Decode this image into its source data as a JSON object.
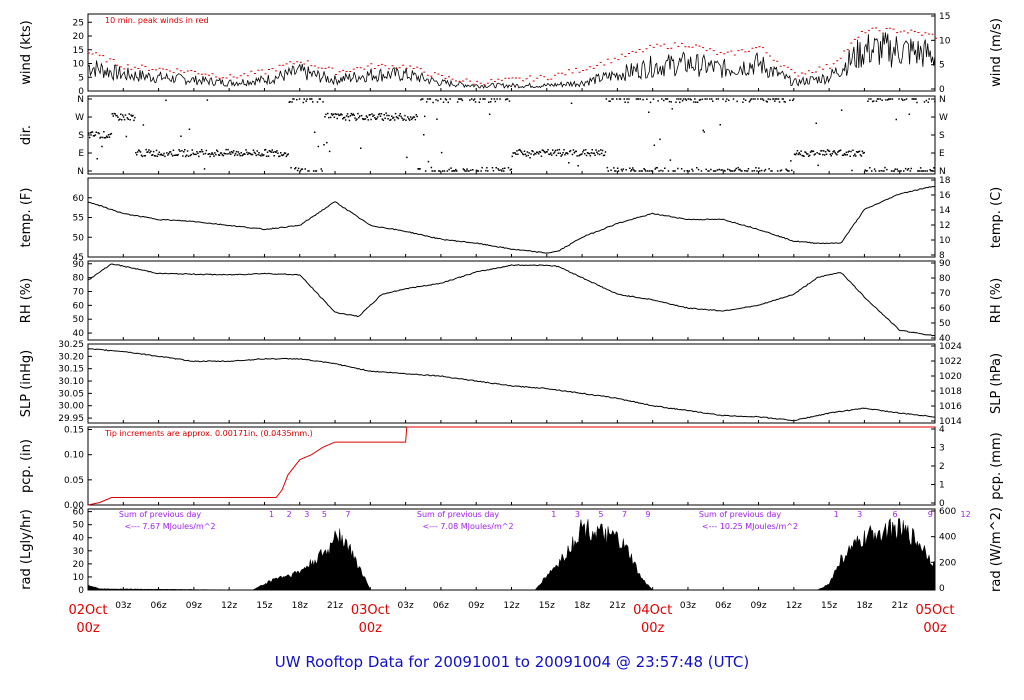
{
  "title": "UW Rooftop Data for 20091001  to  20091004 @ 23:57:48  (UTC)",
  "colors": {
    "peak": "#e00000",
    "trace": "#000000",
    "pcp": "#e00000",
    "note": "#e00000",
    "rad_note": "#a020f0",
    "title": "#1010c8",
    "date": "#e00000"
  },
  "x_axis": {
    "hour_ticks": [
      "03z",
      "06z",
      "09z",
      "12z",
      "15z",
      "18z",
      "21z",
      "03z",
      "06z",
      "09z",
      "12z",
      "15z",
      "18z",
      "21z",
      "03z",
      "06z",
      "09z",
      "12z",
      "15z",
      "18z",
      "21z"
    ],
    "date_labels": [
      {
        "day": "02Oct",
        "hour": "00z"
      },
      {
        "day": "03Oct",
        "hour": "00z"
      },
      {
        "day": "04Oct",
        "hour": "00z"
      },
      {
        "day": "05Oct",
        "hour": "00z"
      }
    ]
  },
  "chart_data": [
    {
      "type": "line",
      "name": "wind",
      "ylabel": "wind (kts)",
      "ylim": [
        0,
        28
      ],
      "yticks": [
        "0",
        "5",
        "10",
        "15",
        "20",
        "25"
      ],
      "y2label": "wind (m/s)",
      "y2ticks": [
        "0",
        "5",
        "10",
        "15"
      ],
      "annotation": "10 min. peak winds in red",
      "x_hours": [
        0,
        3,
        6,
        9,
        12,
        15,
        18,
        21,
        24,
        27,
        30,
        33,
        36,
        39,
        42,
        45,
        48,
        51,
        54,
        57,
        60,
        63,
        66,
        69,
        72
      ],
      "values": [
        9,
        6,
        5,
        4,
        3,
        4,
        7,
        4,
        6,
        6,
        3,
        2,
        2,
        2,
        3,
        6,
        9,
        10,
        8,
        10,
        3,
        5,
        15,
        15,
        13
      ],
      "peak": [
        14,
        9,
        8,
        7,
        5,
        7,
        11,
        7,
        9,
        9,
        5,
        3,
        4,
        5,
        8,
        12,
        16,
        17,
        13,
        16,
        6,
        9,
        22,
        22,
        20
      ]
    },
    {
      "type": "scatter",
      "name": "dir",
      "ylabel": "dir.",
      "yticks": [
        "N",
        "E",
        "S",
        "W",
        "N"
      ],
      "y2ticks": [
        "N",
        "E",
        "S",
        "W",
        "N"
      ],
      "x_hours": [
        0,
        2,
        4,
        8,
        12,
        16,
        17,
        20,
        24,
        28,
        32,
        36,
        40,
        44,
        48,
        52,
        56,
        60,
        64,
        66,
        68,
        70,
        72
      ],
      "values": [
        "S",
        "W",
        "E",
        "E",
        "E",
        "E",
        "N",
        "W",
        "W",
        "N",
        "N",
        "E",
        "E",
        "N",
        "N",
        "N",
        "N",
        "E",
        "E",
        "N",
        "N",
        "N",
        "N"
      ]
    },
    {
      "type": "line",
      "name": "temp",
      "ylabel": "temp. (F)",
      "ylim": [
        45,
        65
      ],
      "yticks": [
        "45",
        "50",
        "55",
        "60"
      ],
      "y2label": "temp. (C)",
      "y2ticks": [
        "8",
        "10",
        "12",
        "14",
        "16",
        "18"
      ],
      "x_hours": [
        0,
        3,
        6,
        9,
        12,
        15,
        18,
        20,
        21,
        24,
        27,
        30,
        33,
        36,
        39,
        40,
        42,
        45,
        48,
        51,
        54,
        57,
        60,
        62,
        64,
        66,
        69,
        72
      ],
      "values": [
        59,
        56,
        54.5,
        54,
        53,
        52,
        53,
        57,
        59,
        53,
        51.5,
        49.5,
        48.5,
        47,
        46,
        46.5,
        50,
        53.5,
        56,
        54.5,
        54.5,
        52,
        49,
        48.5,
        48.5,
        57,
        61,
        63
      ]
    },
    {
      "type": "line",
      "name": "rh",
      "ylabel": "RH (%)",
      "ylim": [
        35,
        92
      ],
      "yticks": [
        "40",
        "50",
        "60",
        "70",
        "80",
        "90"
      ],
      "y2label": "RH (%)",
      "y2ticks": [
        "40",
        "50",
        "60",
        "70",
        "80",
        "90"
      ],
      "x_hours": [
        0,
        2,
        6,
        12,
        15,
        18,
        21,
        23,
        25,
        27,
        30,
        33,
        36,
        39,
        40,
        42,
        45,
        48,
        51,
        54,
        57,
        60,
        62,
        64,
        66,
        69,
        72
      ],
      "values": [
        78,
        90,
        83,
        82,
        83,
        82,
        55,
        52,
        68,
        72,
        76,
        84,
        89,
        89,
        88,
        80,
        68,
        64,
        58,
        56,
        60,
        68,
        80,
        84,
        66,
        42,
        38
      ]
    },
    {
      "type": "line",
      "name": "slp",
      "ylabel": "SLP (inHg)",
      "ylim": [
        29.93,
        30.25
      ],
      "yticks": [
        "29.95",
        "30.00",
        "30.05",
        "30.10",
        "30.15",
        "30.20",
        "30.25"
      ],
      "y2label": "SLP (hPa)",
      "y2ticks": [
        "1014",
        "1016",
        "1018",
        "1020",
        "1022",
        "1024"
      ],
      "x_hours": [
        0,
        3,
        6,
        9,
        12,
        15,
        18,
        21,
        24,
        27,
        30,
        33,
        36,
        39,
        42,
        45,
        48,
        51,
        54,
        57,
        60,
        63,
        66,
        69,
        72
      ],
      "values": [
        30.23,
        30.22,
        30.2,
        30.18,
        30.18,
        30.19,
        30.19,
        30.17,
        30.14,
        30.13,
        30.12,
        30.1,
        30.08,
        30.07,
        30.05,
        30.03,
        30.0,
        29.98,
        29.96,
        29.955,
        29.94,
        29.97,
        29.99,
        29.97,
        29.955
      ]
    },
    {
      "type": "line",
      "name": "pcp",
      "ylabel": "pcp. (in)",
      "ylim": [
        0,
        0.155
      ],
      "yticks": [
        "0.00",
        "0.05",
        "0.10",
        "0.15"
      ],
      "y2label": "pcp. (mm)",
      "y2ticks": [
        "0",
        "1",
        "2",
        "3",
        "4"
      ],
      "annotation": "Tip increments are approx. 0.00171in. (0.0435mm.)",
      "x_hours": [
        0,
        1,
        2,
        16,
        16.5,
        17,
        18,
        19,
        20,
        21,
        22,
        27,
        27.1,
        72
      ],
      "values": [
        0,
        0.005,
        0.015,
        0.015,
        0.03,
        0.06,
        0.09,
        0.1,
        0.115,
        0.125,
        0.125,
        0.125,
        0.155,
        0.155
      ]
    },
    {
      "type": "area",
      "name": "rad",
      "ylabel": "rad (Lgly/hr)",
      "ylim": [
        0,
        62
      ],
      "yticks": [
        "0",
        "10",
        "20",
        "30",
        "40",
        "50",
        "60"
      ],
      "y2label": "rad (W/m^2)",
      "y2ticks": [
        "0",
        "200",
        "400",
        "600"
      ],
      "day_notes": [
        {
          "line1": "Sum of previous day",
          "line2": "<--- 7.67 MJoules/m^2"
        },
        {
          "line1": "Sum of previous day",
          "line2": "<--- 7.08 MJoules/m^2"
        },
        {
          "line1": "Sum of previous day",
          "line2": "<--- 10.25 MJoules/m^2"
        }
      ],
      "hour_marks": [
        [
          "1",
          "2",
          "3",
          "5",
          "7"
        ],
        [
          "1",
          "3",
          "5",
          "7",
          "9"
        ],
        [
          "1",
          "3",
          "6",
          "9",
          "12"
        ]
      ],
      "x_hours": [
        0,
        1,
        14,
        15,
        16,
        17,
        18,
        19,
        20,
        20.5,
        21,
        21.5,
        22,
        23,
        24,
        38,
        39,
        40,
        41,
        42,
        43,
        44,
        45,
        46,
        47,
        48,
        62,
        63,
        64,
        65,
        66,
        67,
        68,
        69,
        70,
        71,
        72
      ],
      "values": [
        4,
        1,
        0,
        5,
        10,
        12,
        15,
        22,
        30,
        32,
        50,
        44,
        38,
        20,
        0,
        0,
        12,
        22,
        35,
        52,
        48,
        45,
        42,
        30,
        10,
        0,
        0,
        5,
        25,
        35,
        42,
        48,
        50,
        50,
        45,
        35,
        20
      ]
    }
  ]
}
